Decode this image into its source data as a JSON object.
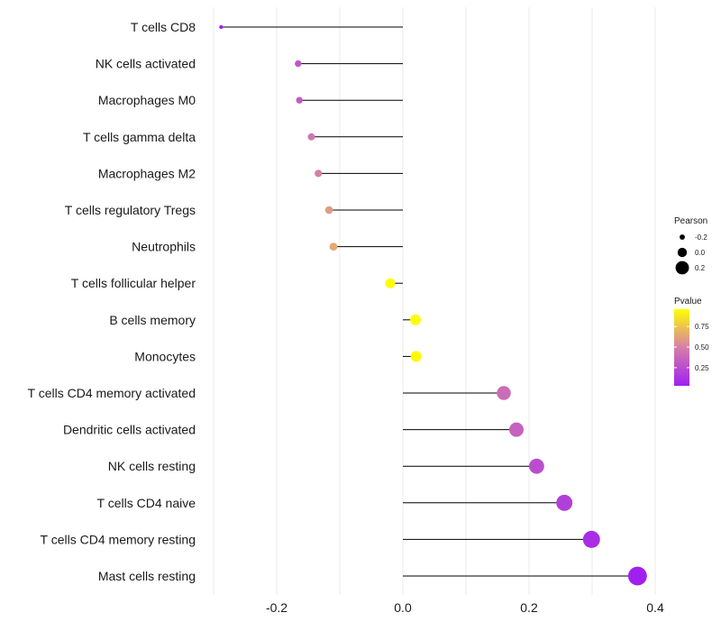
{
  "chart_data": {
    "type": "lollipop",
    "xlabel": "",
    "ylabel": "",
    "xlim": [
      -0.33,
      0.43
    ],
    "xticks": [
      -0.2,
      0.0,
      0.2,
      0.4
    ],
    "xtick_labels": [
      "-0.2",
      "0.0",
      "0.2",
      "0.4"
    ],
    "baseline": 0.0,
    "categories": [
      "T cells CD8",
      "NK cells activated",
      "Macrophages M0",
      "T cells gamma delta",
      "Macrophages M2",
      "T cells regulatory  Tregs",
      "Neutrophils",
      "T cells follicular helper",
      "B cells memory",
      "Monocytes",
      "T cells CD4 memory activated",
      "Dendritic cells activated",
      "NK cells resting",
      "T cells CD4 naive",
      "T cells CD4 memory resting",
      "Mast cells resting"
    ],
    "pearson": [
      -0.288,
      -0.166,
      -0.164,
      -0.145,
      -0.134,
      -0.117,
      -0.11,
      -0.02,
      0.02,
      0.021,
      0.16,
      0.18,
      0.212,
      0.256,
      0.299,
      0.372
    ],
    "pvalue": [
      0.03,
      0.3,
      0.32,
      0.45,
      0.5,
      0.6,
      0.65,
      0.95,
      0.95,
      0.94,
      0.4,
      0.35,
      0.25,
      0.18,
      0.1,
      0.03
    ],
    "legend_size": {
      "title": "Pearson",
      "labels": [
        "-0.2",
        "0.0",
        "0.2"
      ],
      "values": [
        -0.2,
        0.0,
        0.2
      ]
    },
    "legend_color": {
      "title": "Pvalue",
      "labels": [
        "0.75",
        "0.50",
        "0.25"
      ],
      "values": [
        0.75,
        0.5,
        0.25
      ],
      "range": [
        0.03,
        0.96
      ],
      "low_color": "#a020f0",
      "mid_color": "#d67fa8",
      "high_color": "#ffff00"
    },
    "colors": {
      "gridline": "#ebebeb",
      "stem": "#000000"
    }
  }
}
